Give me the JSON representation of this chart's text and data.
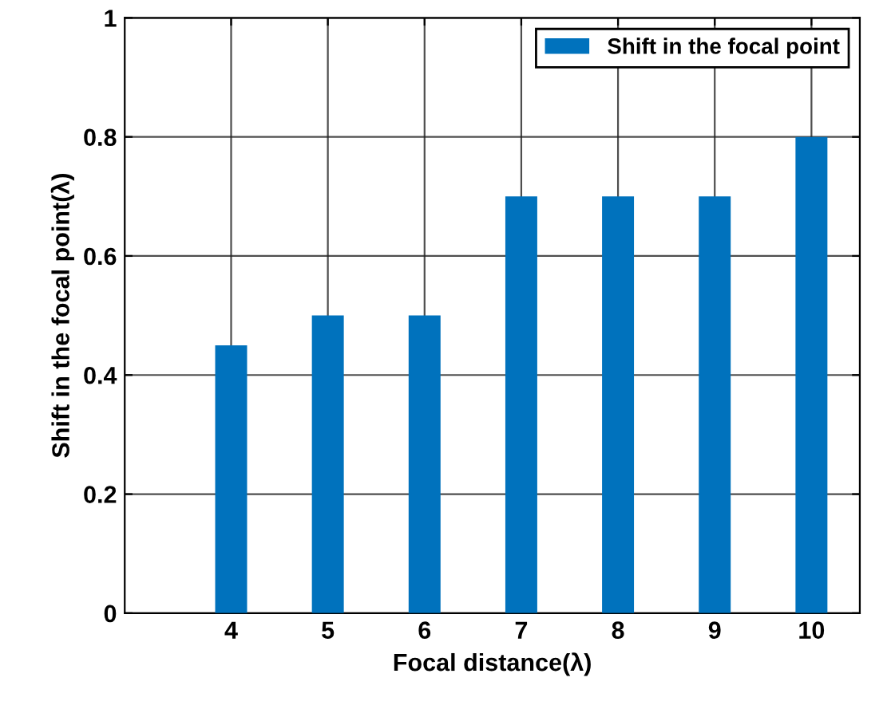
{
  "chart_data": {
    "type": "bar",
    "xlabel": "Focal distance(λ)",
    "ylabel": "Shift in the focal point(λ)",
    "x": [
      4,
      5,
      6,
      7,
      8,
      9,
      10
    ],
    "series": [
      {
        "name": "Shift in the focal point",
        "color": "#0072bd",
        "values": [
          0.45,
          0.5,
          0.5,
          0.7,
          0.7,
          0.7,
          0.8
        ]
      }
    ],
    "xlim": [
      2.9,
      10.5
    ],
    "xticks": [
      4,
      5,
      6,
      7,
      8,
      9,
      10
    ],
    "ylim": [
      0,
      1
    ],
    "yticks": [
      0,
      0.2,
      0.4,
      0.6,
      0.8,
      1
    ],
    "grid": true,
    "legend": "top right"
  }
}
